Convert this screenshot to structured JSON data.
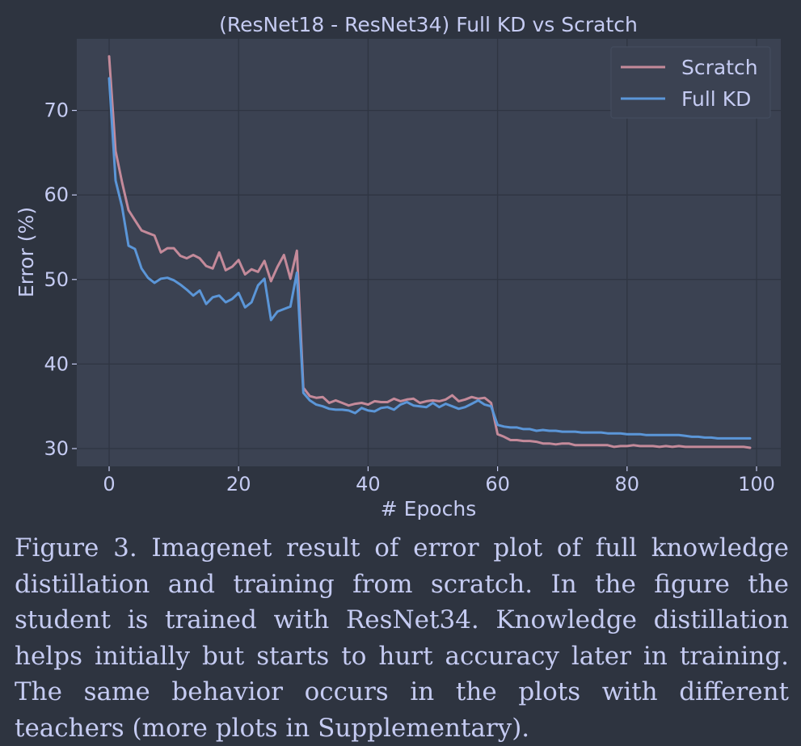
{
  "chart_data": {
    "type": "line",
    "title": "(ResNet18 - ResNet34) Full KD vs Scratch",
    "xlabel": "# Epochs",
    "ylabel": "Error (%)",
    "xlim": [
      -5,
      104
    ],
    "ylim": [
      28,
      77
    ],
    "xticks": [
      0,
      20,
      40,
      60,
      80,
      100
    ],
    "yticks": [
      30,
      40,
      50,
      60,
      70
    ],
    "grid": true,
    "legend_position": "top-right",
    "colors": {
      "Scratch": "#c48a9a",
      "Full KD": "#5b96d8"
    },
    "series": [
      {
        "name": "Scratch",
        "x": [
          0,
          1,
          2,
          3,
          4,
          5,
          6,
          7,
          8,
          9,
          10,
          11,
          12,
          13,
          14,
          15,
          16,
          17,
          18,
          19,
          20,
          21,
          22,
          23,
          24,
          25,
          26,
          27,
          28,
          29,
          30,
          31,
          32,
          33,
          34,
          35,
          36,
          37,
          38,
          39,
          40,
          41,
          42,
          43,
          44,
          45,
          46,
          47,
          48,
          49,
          50,
          51,
          52,
          53,
          54,
          55,
          56,
          57,
          58,
          59,
          60,
          61,
          62,
          63,
          64,
          65,
          66,
          67,
          68,
          69,
          70,
          71,
          72,
          73,
          74,
          75,
          76,
          77,
          78,
          79,
          80,
          81,
          82,
          83,
          84,
          85,
          86,
          87,
          88,
          89,
          90,
          91,
          92,
          93,
          94,
          95,
          96,
          97,
          98,
          99
        ],
        "values": [
          76.4,
          65.2,
          61.5,
          58.2,
          57.0,
          55.8,
          55.5,
          55.2,
          53.2,
          53.7,
          53.7,
          52.8,
          52.5,
          52.9,
          52.5,
          51.6,
          51.3,
          53.2,
          51.1,
          51.5,
          52.3,
          50.6,
          51.2,
          50.9,
          52.2,
          49.8,
          51.5,
          52.9,
          50.1,
          53.4,
          37.2,
          36.2,
          36.0,
          36.1,
          35.4,
          35.7,
          35.4,
          35.1,
          35.3,
          35.4,
          35.2,
          35.6,
          35.5,
          35.5,
          35.9,
          35.6,
          35.8,
          35.9,
          35.4,
          35.6,
          35.7,
          35.6,
          35.8,
          36.3,
          35.6,
          35.8,
          36.1,
          35.9,
          36.0,
          35.4,
          31.7,
          31.4,
          31.0,
          31.0,
          30.9,
          30.9,
          30.8,
          30.6,
          30.6,
          30.5,
          30.6,
          30.6,
          30.4,
          30.4,
          30.4,
          30.4,
          30.4,
          30.4,
          30.2,
          30.3,
          30.3,
          30.4,
          30.3,
          30.3,
          30.3,
          30.2,
          30.3,
          30.2,
          30.3,
          30.2,
          30.2,
          30.2,
          30.2,
          30.2,
          30.2,
          30.2,
          30.2,
          30.2,
          30.2,
          30.1
        ]
      },
      {
        "name": "Full KD",
        "x": [
          0,
          1,
          2,
          3,
          4,
          5,
          6,
          7,
          8,
          9,
          10,
          11,
          12,
          13,
          14,
          15,
          16,
          17,
          18,
          19,
          20,
          21,
          22,
          23,
          24,
          25,
          26,
          27,
          28,
          29,
          30,
          31,
          32,
          33,
          34,
          35,
          36,
          37,
          38,
          39,
          40,
          41,
          42,
          43,
          44,
          45,
          46,
          47,
          48,
          49,
          50,
          51,
          52,
          53,
          54,
          55,
          56,
          57,
          58,
          59,
          60,
          61,
          62,
          63,
          64,
          65,
          66,
          67,
          68,
          69,
          70,
          71,
          72,
          73,
          74,
          75,
          76,
          77,
          78,
          79,
          80,
          81,
          82,
          83,
          84,
          85,
          86,
          87,
          88,
          89,
          90,
          91,
          92,
          93,
          94,
          95,
          96,
          97,
          98,
          99
        ],
        "values": [
          73.8,
          61.7,
          58.6,
          54.0,
          53.6,
          51.3,
          50.2,
          49.6,
          50.1,
          50.2,
          49.9,
          49.4,
          48.8,
          48.1,
          48.7,
          47.1,
          47.9,
          48.1,
          47.3,
          47.7,
          48.4,
          46.7,
          47.3,
          49.3,
          50.1,
          45.2,
          46.2,
          46.5,
          46.8,
          50.8,
          36.6,
          35.7,
          35.2,
          35.0,
          34.7,
          34.6,
          34.6,
          34.5,
          34.2,
          34.8,
          34.5,
          34.4,
          34.8,
          34.9,
          34.6,
          35.2,
          35.5,
          35.1,
          35.0,
          34.9,
          35.4,
          34.9,
          35.3,
          35.0,
          34.7,
          34.9,
          35.3,
          35.7,
          35.2,
          35.0,
          32.8,
          32.6,
          32.5,
          32.5,
          32.3,
          32.3,
          32.1,
          32.2,
          32.1,
          32.1,
          32.0,
          32.0,
          32.0,
          31.9,
          31.9,
          31.9,
          31.9,
          31.8,
          31.8,
          31.8,
          31.7,
          31.7,
          31.7,
          31.6,
          31.6,
          31.6,
          31.6,
          31.6,
          31.6,
          31.5,
          31.4,
          31.4,
          31.3,
          31.3,
          31.2,
          31.2,
          31.2,
          31.2,
          31.2,
          31.2
        ]
      }
    ]
  },
  "caption": "Figure 3. Imagenet result of error plot of full knowledge distillation and training from scratch. In the figure the student is trained with ResNet34. Knowledge distillation helps initially but starts to hurt accuracy later in training. The same behavior occurs in the plots with different teachers (more plots in Supplementary)."
}
